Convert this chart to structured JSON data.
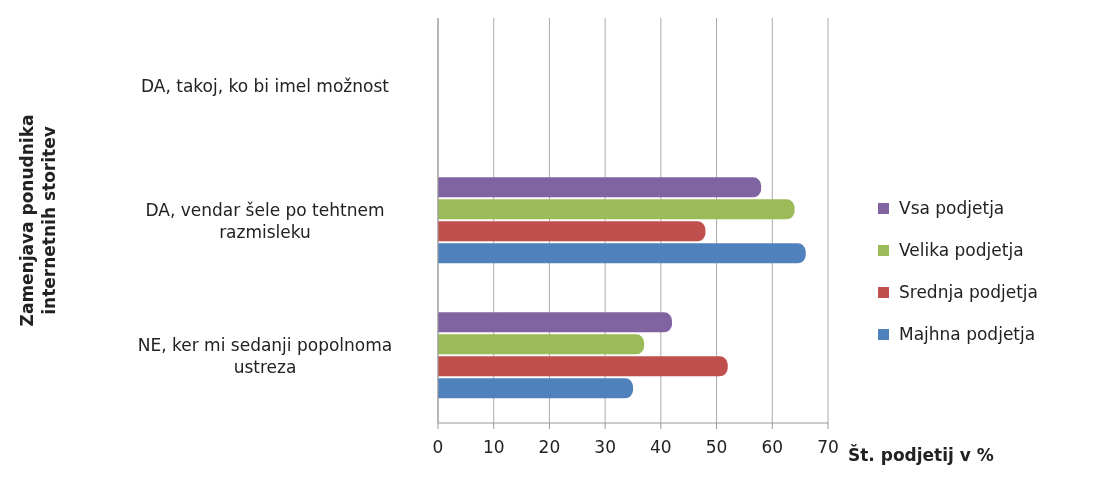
{
  "chart_data": {
    "type": "bar",
    "orientation": "horizontal",
    "ylabel": "Zamenjava ponudnika internetnih storitev",
    "xlabel": "Št. podjetij v %",
    "categories": [
      "DA, takoj, ko bi imel možnost",
      "DA, vendar šele po tehtnem razmisleku",
      "NE, ker mi sedanji popolnoma ustreza"
    ],
    "series": [
      {
        "name": "Vsa podjetja",
        "color": "#8064a2",
        "values": [
          0,
          58,
          42
        ]
      },
      {
        "name": "Velika podjetja",
        "color": "#9bbb59",
        "values": [
          0,
          64,
          37
        ]
      },
      {
        "name": "Srednja podjetja",
        "color": "#c0504d",
        "values": [
          0,
          48,
          52
        ]
      },
      {
        "name": "Majhna podjetja",
        "color": "#4f81bd",
        "values": [
          0,
          66,
          35
        ]
      }
    ],
    "xlim": [
      0,
      70
    ],
    "xticks": [
      0,
      10,
      20,
      30,
      40,
      50,
      60,
      70
    ],
    "grid": "x",
    "legend": "right"
  }
}
